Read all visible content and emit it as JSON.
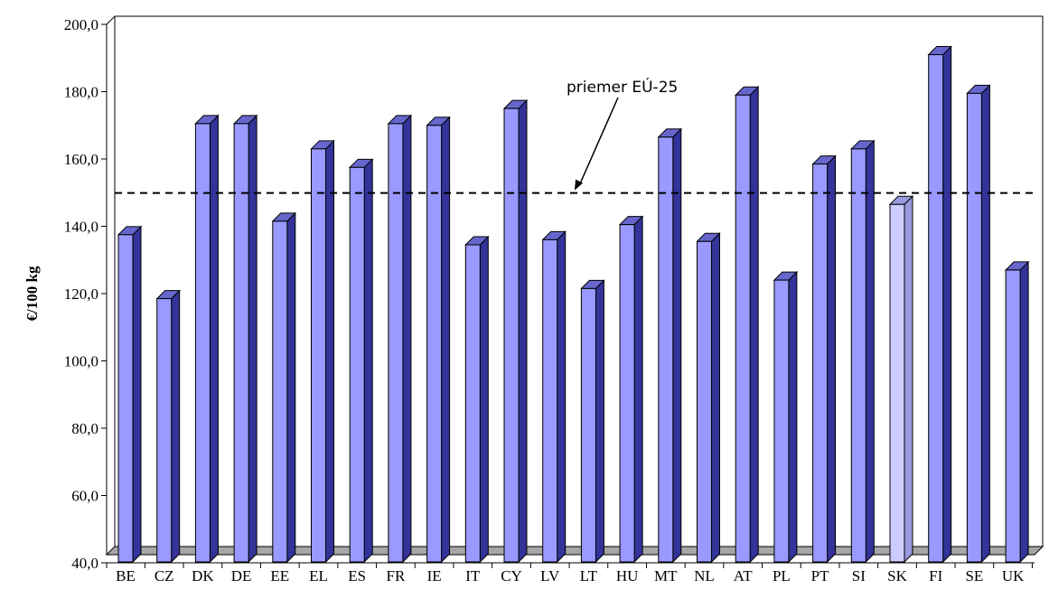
{
  "chart_data": {
    "type": "bar",
    "ylabel": "€/100 kg",
    "ylim": [
      40,
      200
    ],
    "ytick_step": 20,
    "ytick_labels": [
      "40,0",
      "60,0",
      "80,0",
      "100,0",
      "120,0",
      "140,0",
      "160,0",
      "180,0",
      "200,0"
    ],
    "categories": [
      "BE",
      "CZ",
      "DK",
      "DE",
      "EE",
      "EL",
      "ES",
      "FR",
      "IE",
      "IT",
      "CY",
      "LV",
      "LT",
      "HU",
      "MT",
      "NL",
      "AT",
      "PL",
      "PT",
      "SI",
      "SK",
      "FI",
      "SE",
      "UK"
    ],
    "values": [
      137.5,
      118.5,
      170.5,
      170.5,
      141.5,
      163.0,
      157.5,
      170.5,
      170.0,
      134.5,
      175.0,
      136.0,
      121.5,
      140.5,
      166.5,
      135.5,
      179.0,
      124.0,
      158.5,
      163.0,
      146.5,
      191.0,
      179.5,
      127.0
    ],
    "highlight_category": "SK",
    "reference_line": {
      "label": "priemer EÚ-25",
      "value": 147.5
    },
    "grid": false,
    "legend": "none",
    "colors": {
      "bar_front": "#9999ff",
      "bar_side": "#333399",
      "bar_top": "#6666cc",
      "highlight_front": "#ccccff",
      "highlight_side": "#9999dd",
      "floor": "#a6a6a6"
    }
  }
}
